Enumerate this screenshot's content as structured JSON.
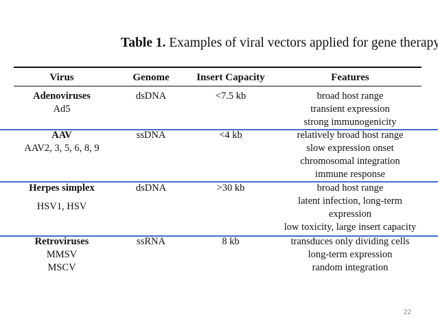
{
  "caption": {
    "label": "Table 1.",
    "text": "Examples of viral vectors applied for gene therapy."
  },
  "table": {
    "headers": {
      "virus": "Virus",
      "genome": "Genome",
      "insert": "Insert Capacity",
      "features": "Features"
    },
    "rows": [
      {
        "virus_name": "Adenoviruses",
        "virus_sub": [
          "Ad5"
        ],
        "genome": "dsDNA",
        "insert": "<7.5 kb",
        "features": [
          "broad host range",
          "transient expression",
          "strong immunogenicity"
        ]
      },
      {
        "virus_name": "AAV",
        "virus_sub": [
          "AAV2, 3, 5, 6, 8, 9"
        ],
        "genome": "ssDNA",
        "insert": "<4 kb",
        "features": [
          "relatively broad host range",
          "slow expression onset",
          "chromosomal integration",
          "immune response"
        ]
      },
      {
        "virus_name": "Herpes simplex",
        "virus_sub": [
          "HSV1, HSV"
        ],
        "genome": "dsDNA",
        "insert": ">30 kb",
        "features": [
          "broad host range",
          "latent infection, long-term",
          "expression",
          "low toxicity, large insert capacity"
        ]
      },
      {
        "virus_name": "Retroviruses",
        "virus_sub": [
          "MMSV",
          "MSCV"
        ],
        "genome": "ssRNA",
        "insert": "8 kb",
        "features": [
          "transduces only dividing cells",
          "long-term expression",
          "random integration"
        ]
      }
    ]
  },
  "page_number": "22",
  "colors": {
    "separator": "#3f6fc4",
    "page_number": "#8a8a8a",
    "text": "#111111"
  }
}
